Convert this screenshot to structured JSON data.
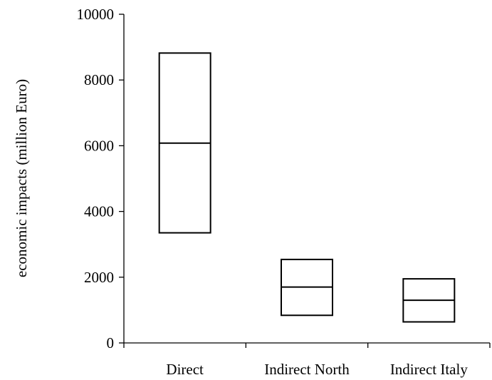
{
  "chart_data": {
    "type": "boxplot",
    "title": "",
    "xlabel": "",
    "ylabel": "economic impacts (million Euro)",
    "ylim": [
      0,
      10000
    ],
    "yticks": [
      0,
      2000,
      4000,
      6000,
      8000,
      10000
    ],
    "ytick_labels": [
      "0",
      "2000",
      "4000",
      "6000",
      "8000",
      "10000"
    ],
    "categories": [
      "Direct",
      "Indirect North",
      "Indirect Italy"
    ],
    "boxes": [
      {
        "category": "Direct",
        "low": 3350,
        "median": 6080,
        "high": 8820
      },
      {
        "category": "Indirect North",
        "low": 840,
        "median": 1700,
        "high": 2540
      },
      {
        "category": "Indirect Italy",
        "low": 640,
        "median": 1300,
        "high": 1950
      }
    ],
    "grid": false,
    "legend": "none"
  }
}
